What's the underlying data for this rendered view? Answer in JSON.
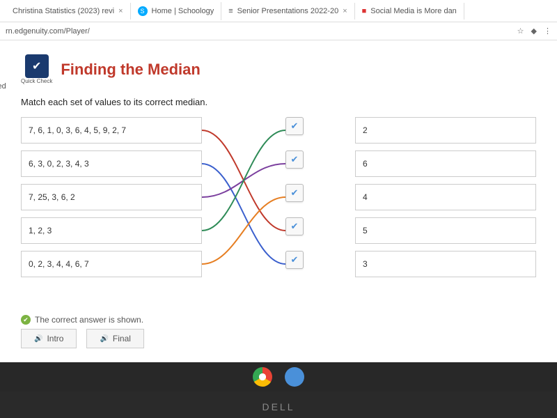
{
  "browser": {
    "tabs": [
      {
        "label": "Christina Statistics (2023) revi"
      },
      {
        "label": "Home | Schoology",
        "icon": "S"
      },
      {
        "label": "Senior Presentations 2022-20",
        "icon": "≡"
      },
      {
        "label": "Social Media is More dan",
        "icon": "■"
      }
    ],
    "url": "rn.edgenuity.com/Player/",
    "status_left": "iewed"
  },
  "page": {
    "logo_sub": "Quick Check",
    "title": "Finding the Median",
    "title_color": "#c0392b",
    "instruction": "Match each set of values to its correct median."
  },
  "matching": {
    "left_items": [
      "7, 6, 1, 0, 3, 6, 4, 5, 9, 2, 7",
      "6, 3, 0, 2, 3, 4, 3",
      "7, 25, 3, 6, 2",
      "1, 2, 3",
      "0, 2, 3, 4, 4, 6, 7"
    ],
    "right_items": [
      "2",
      "6",
      "4",
      "5",
      "3"
    ],
    "lines": [
      {
        "from": 0,
        "to": 3,
        "color": "#c0392b"
      },
      {
        "from": 1,
        "to": 4,
        "color": "#3a5fcd"
      },
      {
        "from": 2,
        "to": 1,
        "color": "#7b3f9e"
      },
      {
        "from": 3,
        "to": 0,
        "color": "#2e8b57"
      },
      {
        "from": 4,
        "to": 2,
        "color": "#e67e22"
      }
    ]
  },
  "feedback": {
    "text": "The correct answer is shown."
  },
  "buttons": {
    "intro": "Intro",
    "final": "Final"
  },
  "laptop": {
    "brand": "DELL"
  }
}
